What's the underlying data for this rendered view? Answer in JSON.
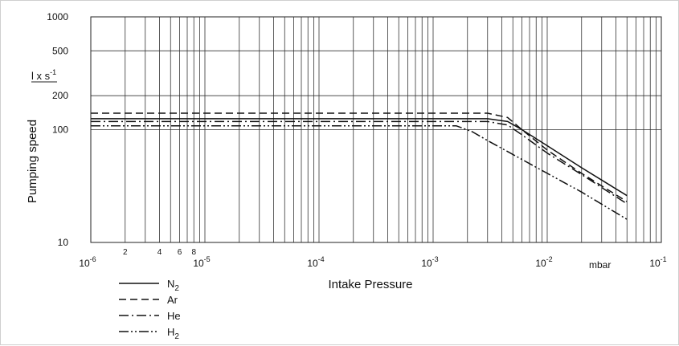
{
  "chart_data": {
    "type": "line",
    "title": "",
    "xlabel": "Intake Pressure",
    "x_unit": "mbar",
    "ylabel": "Pumping speed",
    "y_unit": "l x s-1",
    "xscale": "log",
    "yscale": "log",
    "xlim": [
      1e-06,
      0.1
    ],
    "ylim": [
      10,
      1000
    ],
    "grid": true,
    "legend_position": "bottom-left",
    "x_major_ticks": [
      {
        "base": "10",
        "exp": "-6"
      },
      {
        "base": "10",
        "exp": "-5"
      },
      {
        "base": "10",
        "exp": "-4"
      },
      {
        "base": "10",
        "exp": "-3"
      },
      {
        "base": "10",
        "exp": "-2"
      },
      {
        "base": "10",
        "exp": "-1"
      }
    ],
    "x_minor_labels": [
      "2",
      "4",
      "6",
      "8"
    ],
    "y_ticks": [
      "10",
      "100",
      "200",
      "500",
      "1000"
    ],
    "series": [
      {
        "name": "N",
        "sub": "2",
        "dash": "solid",
        "points": [
          [
            1e-06,
            125
          ],
          [
            0.003,
            125
          ],
          [
            0.0045,
            118
          ],
          [
            0.006,
            100
          ],
          [
            0.01,
            72
          ],
          [
            0.02,
            46
          ],
          [
            0.05,
            26
          ]
        ]
      },
      {
        "name": "Ar",
        "sub": "",
        "dash": "dash",
        "points": [
          [
            1e-06,
            140
          ],
          [
            0.003,
            140
          ],
          [
            0.0045,
            128
          ],
          [
            0.006,
            100
          ],
          [
            0.01,
            66
          ],
          [
            0.02,
            41
          ],
          [
            0.05,
            23
          ]
        ]
      },
      {
        "name": "He",
        "sub": "",
        "dash": "dashdot",
        "points": [
          [
            1e-06,
            118
          ],
          [
            0.003,
            118
          ],
          [
            0.0045,
            110
          ],
          [
            0.006,
            90
          ],
          [
            0.01,
            62
          ],
          [
            0.02,
            40
          ],
          [
            0.05,
            22
          ]
        ]
      },
      {
        "name": "H",
        "sub": "2",
        "dash": "dashdotdot",
        "points": [
          [
            1e-06,
            108
          ],
          [
            0.0016,
            108
          ],
          [
            0.0022,
            96
          ],
          [
            0.003,
            80
          ],
          [
            0.01,
            41
          ],
          [
            0.02,
            28
          ],
          [
            0.05,
            16
          ]
        ]
      }
    ]
  }
}
